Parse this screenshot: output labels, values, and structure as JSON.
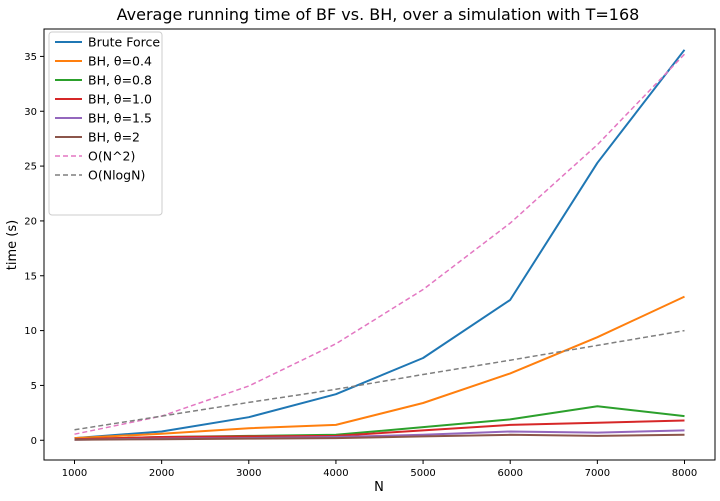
{
  "chart_data": {
    "type": "line",
    "title": "Average running time of BF vs. BH, over a simulation with T=168",
    "xlabel": "N",
    "ylabel": "time (s)",
    "x": [
      1000,
      2000,
      3000,
      4000,
      5000,
      6000,
      7000,
      8000
    ],
    "xticks": [
      1000,
      2000,
      3000,
      4000,
      5000,
      6000,
      7000,
      8000
    ],
    "yticks": [
      0,
      5,
      10,
      15,
      20,
      25,
      30,
      35
    ],
    "xlim": [
      650,
      8350
    ],
    "ylim": [
      -1.8,
      37.5
    ],
    "grid": false,
    "legend_position": "top-left",
    "series": [
      {
        "name": "Brute Force",
        "color": "#1f77b4",
        "dash": "solid",
        "values": [
          0.2,
          0.8,
          2.1,
          4.2,
          7.5,
          12.8,
          25.3,
          35.6
        ]
      },
      {
        "name": "BH, θ=0.4",
        "color": "#ff7f0e",
        "dash": "solid",
        "values": [
          0.2,
          0.6,
          1.1,
          1.4,
          3.4,
          6.1,
          9.4,
          13.1
        ]
      },
      {
        "name": "BH, θ=0.8",
        "color": "#2ca02c",
        "dash": "solid",
        "values": [
          0.1,
          0.3,
          0.4,
          0.5,
          1.2,
          1.9,
          3.1,
          2.2
        ]
      },
      {
        "name": "BH, θ=1.0",
        "color": "#d62728",
        "dash": "solid",
        "values": [
          0.1,
          0.3,
          0.35,
          0.4,
          0.9,
          1.4,
          1.6,
          1.8
        ]
      },
      {
        "name": "BH, θ=1.5",
        "color": "#9467bd",
        "dash": "solid",
        "values": [
          0.05,
          0.15,
          0.2,
          0.3,
          0.5,
          0.8,
          0.7,
          0.9
        ]
      },
      {
        "name": "BH, θ=2",
        "color": "#8c564b",
        "dash": "solid",
        "values": [
          0.05,
          0.1,
          0.15,
          0.2,
          0.35,
          0.5,
          0.4,
          0.5
        ]
      },
      {
        "name": "O(N^2)",
        "color": "#e377c2",
        "dash": "dashed",
        "values": [
          0.55,
          2.2,
          4.95,
          8.8,
          13.75,
          19.8,
          26.95,
          35.2
        ]
      },
      {
        "name": "O(NlogN)",
        "color": "#7f7f7f",
        "dash": "dashed",
        "values": [
          0.95,
          2.2,
          3.45,
          4.65,
          6.0,
          7.3,
          8.65,
          10.0
        ]
      }
    ]
  }
}
